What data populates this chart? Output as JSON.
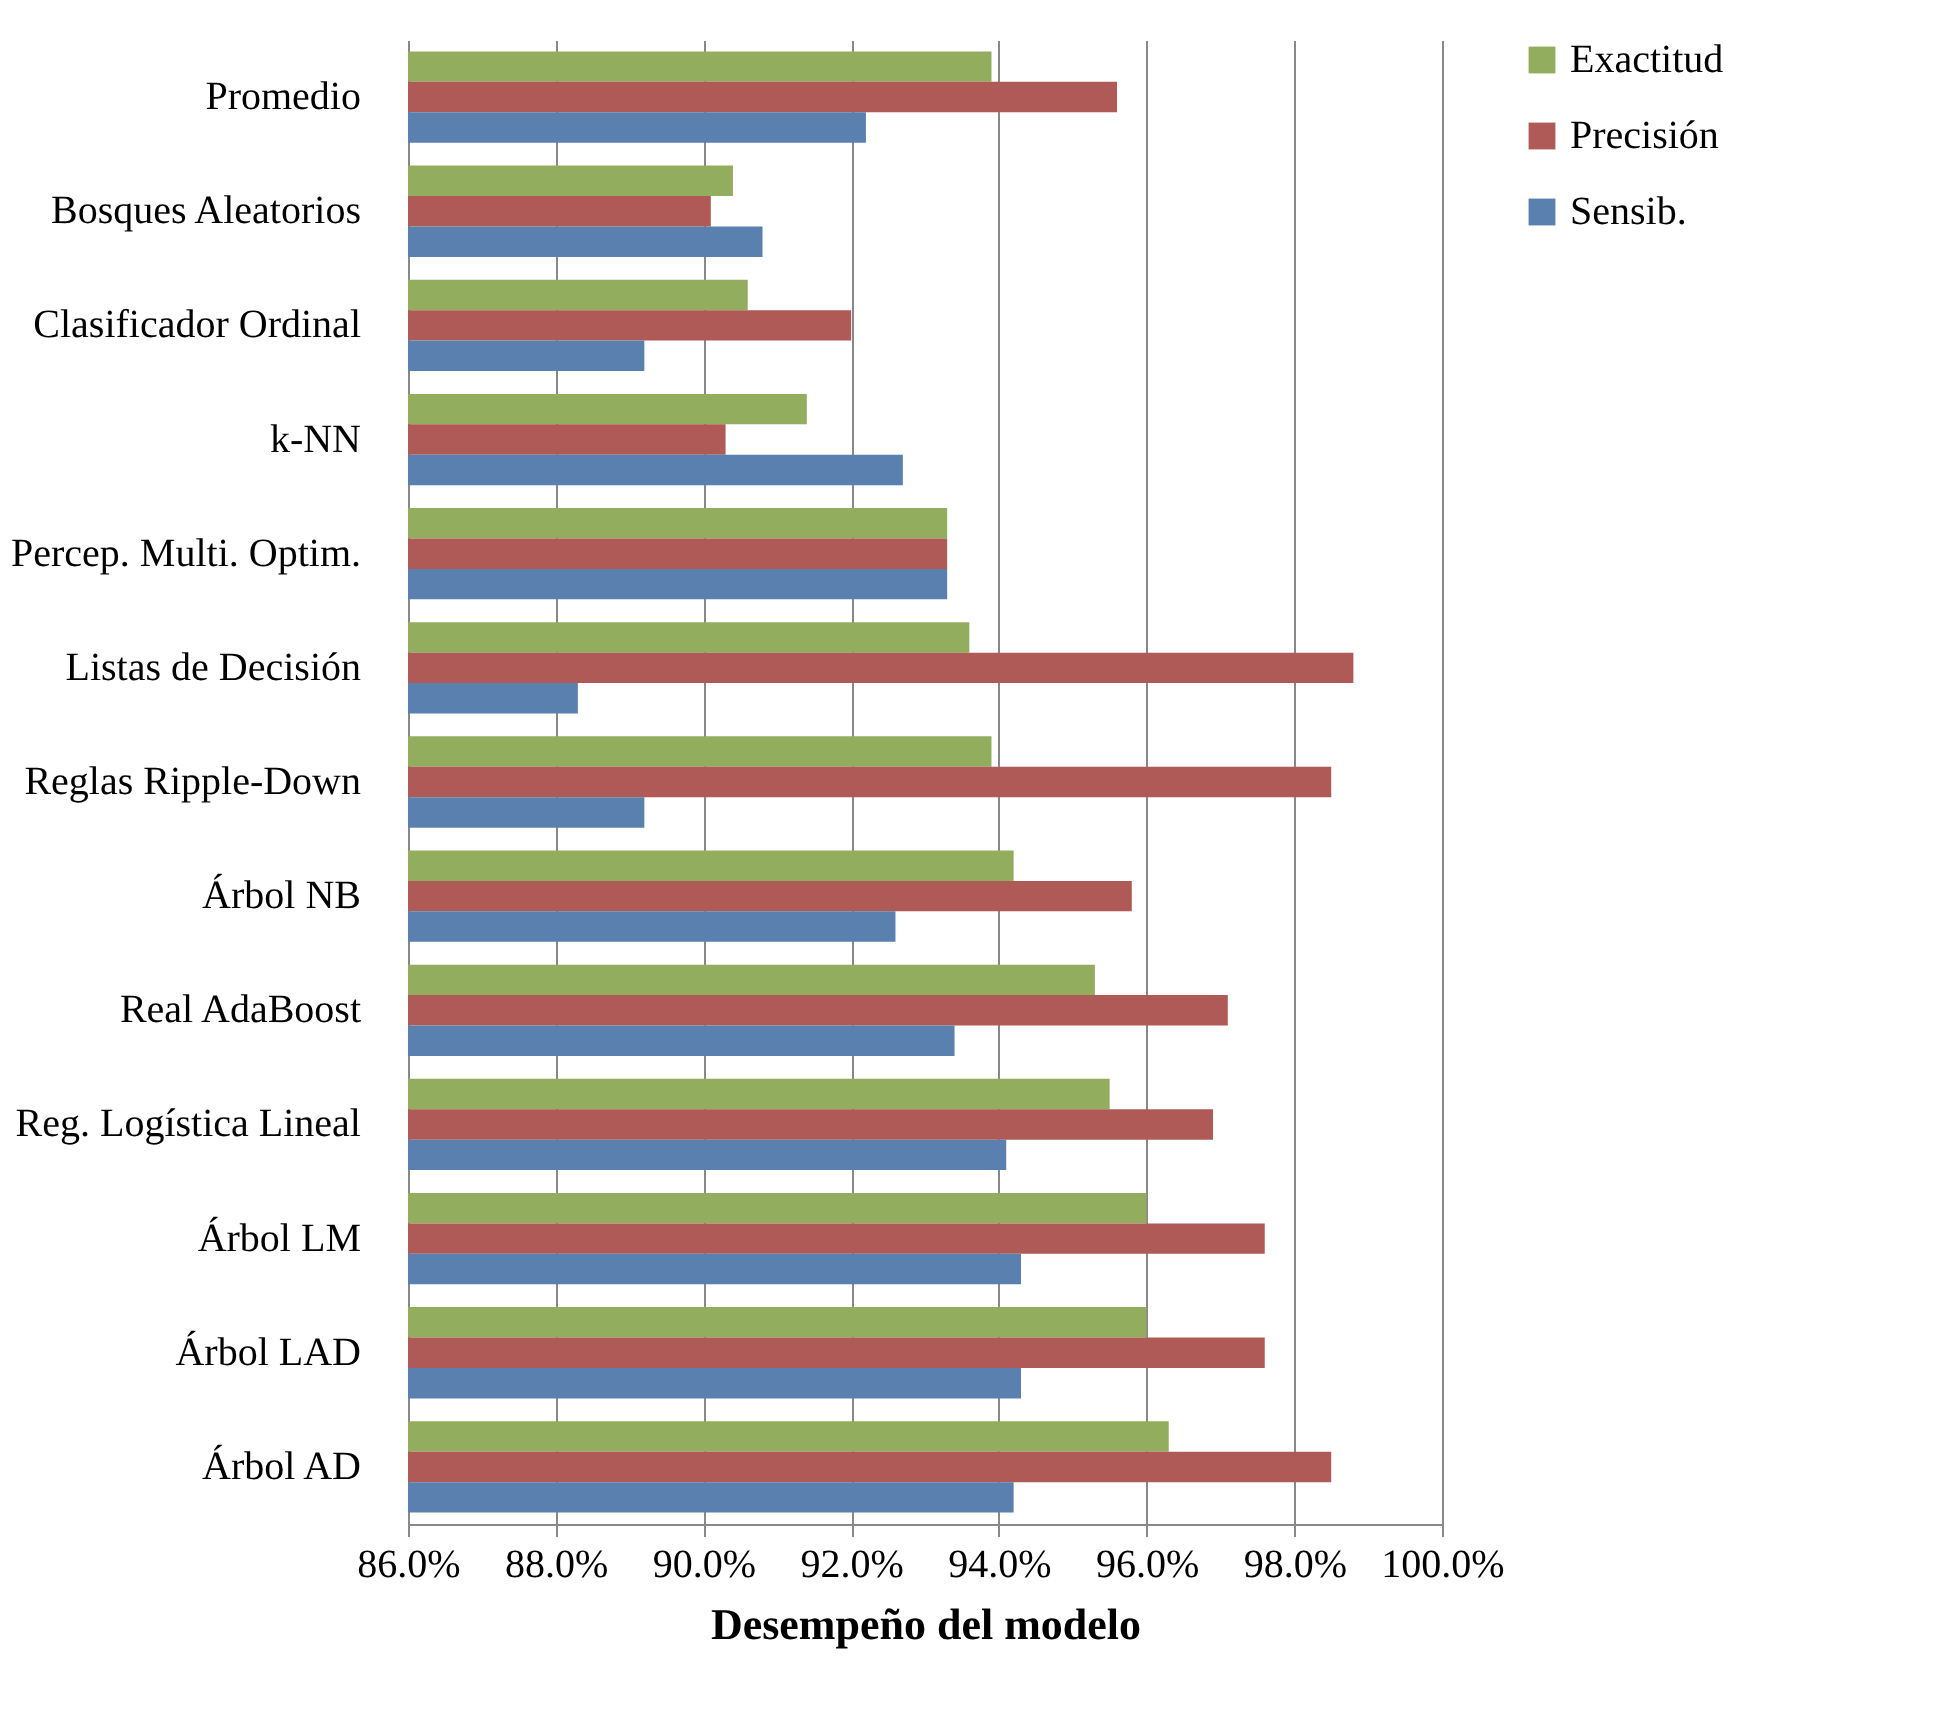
{
  "chart_data": {
    "type": "bar",
    "orientation": "horizontal",
    "xlabel": "Desempeño del modelo",
    "categories": [
      "Promedio",
      "Bosques Aleatorios",
      "Clasificador Ordinal",
      "k-NN",
      "Percep. Multi. Optim.",
      "Listas de Decisión",
      "Reglas Ripple-Down",
      "Árbol NB",
      "Real AdaBoost",
      "Reg. Logística Lineal",
      "Árbol LM",
      "Árbol LAD",
      "Árbol AD"
    ],
    "series": [
      {
        "name": "Exactitud",
        "color": "#93ad5f",
        "values": [
          93.9,
          90.4,
          90.6,
          91.4,
          93.3,
          93.6,
          93.9,
          94.2,
          95.3,
          95.5,
          96.0,
          96.0,
          96.3
        ]
      },
      {
        "name": "Precisión",
        "color": "#b05a58",
        "values": [
          95.6,
          90.1,
          92.0,
          90.3,
          93.3,
          98.8,
          98.5,
          95.8,
          97.1,
          96.9,
          97.6,
          97.6,
          98.5
        ]
      },
      {
        "name": "Sensib.",
        "color": "#5a80b0",
        "values": [
          92.2,
          90.8,
          89.2,
          92.7,
          93.3,
          88.3,
          89.2,
          92.6,
          93.4,
          94.1,
          94.3,
          94.3,
          94.2
        ]
      }
    ],
    "xlim": [
      86,
      100
    ],
    "xticks": [
      {
        "value": 86,
        "label": "86.0%"
      },
      {
        "value": 88,
        "label": "88.0%"
      },
      {
        "value": 90,
        "label": "90.0%"
      },
      {
        "value": 92,
        "label": "92.0%"
      },
      {
        "value": 94,
        "label": "94.0%"
      },
      {
        "value": 96,
        "label": "96.0%"
      },
      {
        "value": 98,
        "label": "98.0%"
      },
      {
        "value": 100,
        "label": "100.0%"
      }
    ],
    "grid": "x",
    "legend": "right"
  }
}
